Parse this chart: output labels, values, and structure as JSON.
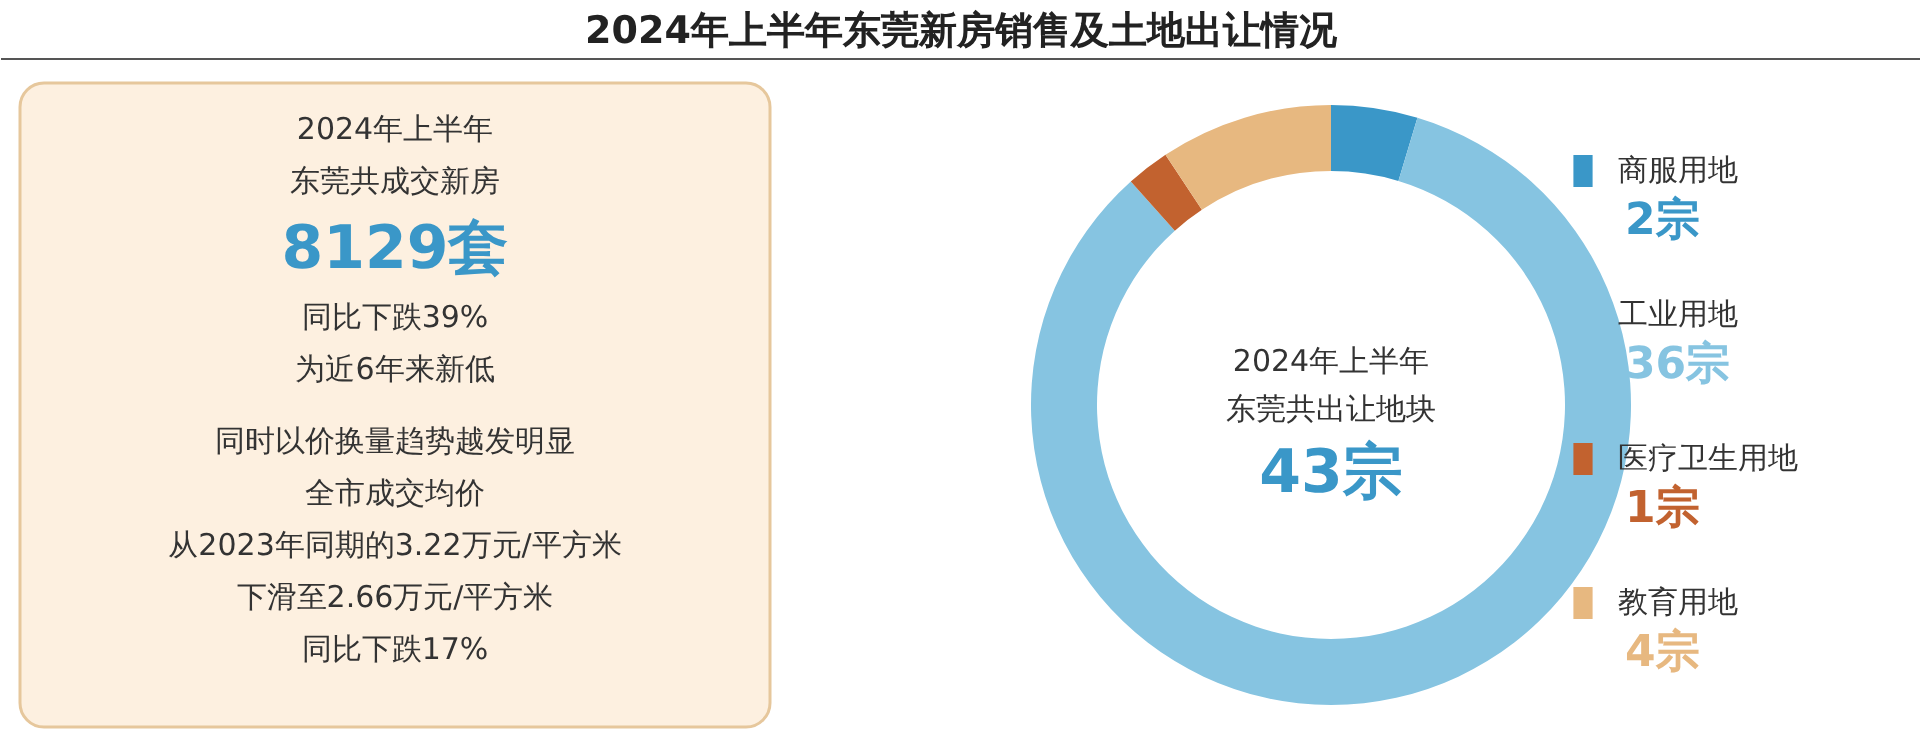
{
  "chart_data": [
    {
      "type": "other",
      "annotations": [
        "2024年上半年",
        "东莞共成交新房",
        "8129套",
        "同比下跌39%",
        "为近6年来新低",
        "同时以价换量趋势越发明显",
        "全市成交均价",
        "从2023年同期的3.22万元/平方米",
        "下滑至2.66万元/平方米",
        "同比下跌17%"
      ]
    },
    {
      "type": "donut",
      "title": "2024年上半年东莞新房销售及土地出让情况",
      "categories": [
        "商服用地",
        "工业用地",
        "医疗卫生用地",
        "教育用地"
      ],
      "values": [
        2,
        36,
        1,
        4
      ],
      "colors": [
        "#3a97c8",
        "#86c4e1",
        "#c2622f",
        "#e7b880"
      ],
      "value_labels": [
        "2宗",
        "36宗",
        "1宗",
        "4宗"
      ],
      "legend": "right",
      "annotations": [
        "2024年上半年",
        "东莞共出让地块",
        "43宗"
      ]
    }
  ]
}
